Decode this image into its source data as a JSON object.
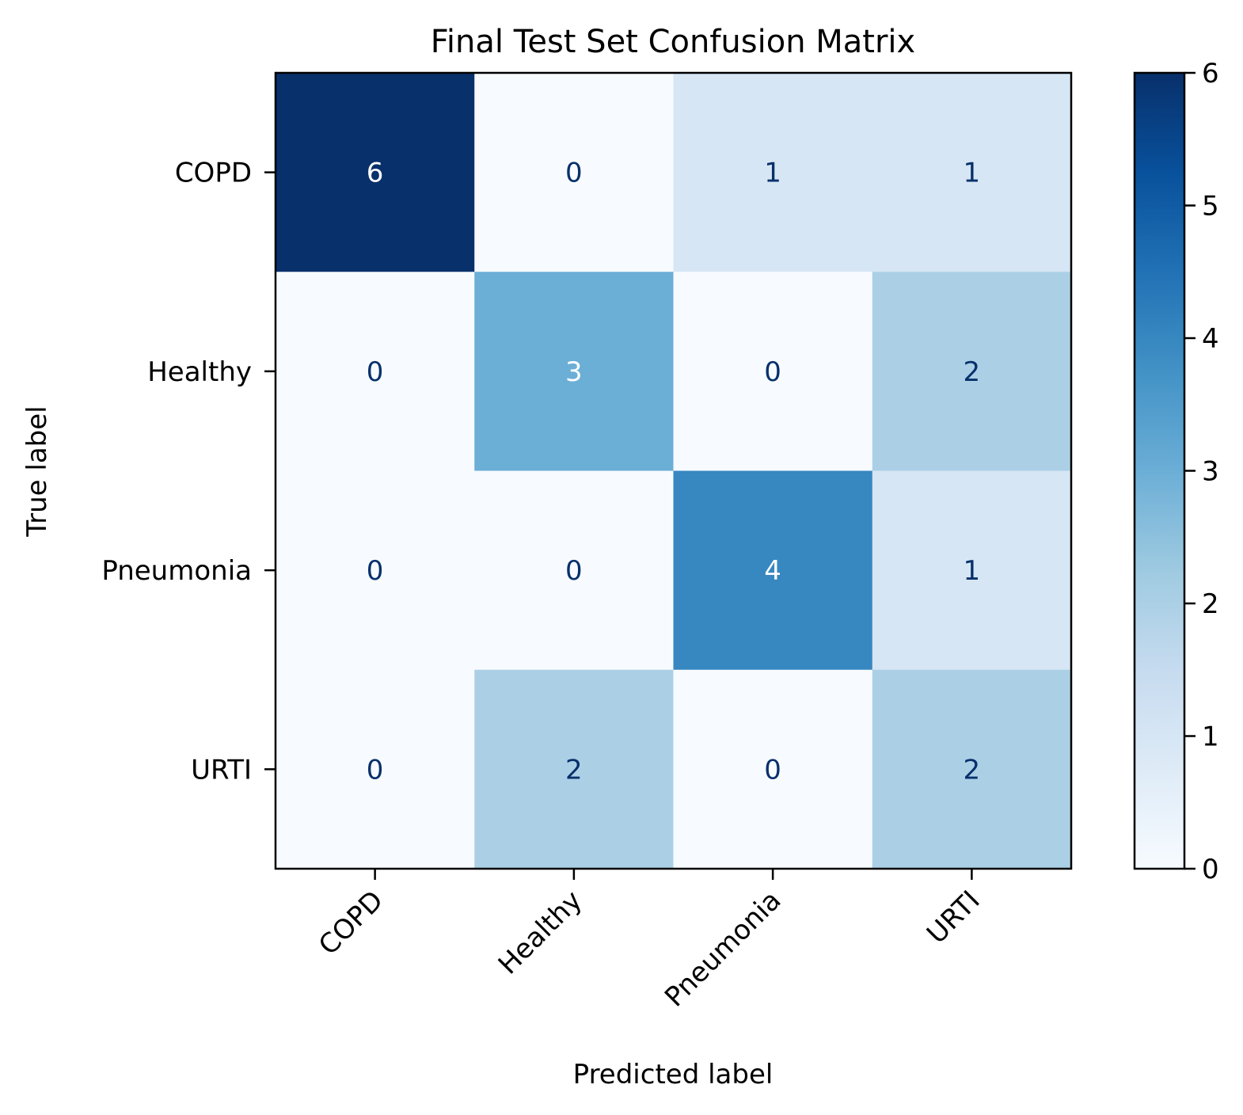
{
  "chart_data": {
    "type": "heatmap",
    "title": "Final Test Set Confusion Matrix",
    "xlabel": "Predicted label",
    "ylabel": "True label",
    "x_categories": [
      "COPD",
      "Healthy",
      "Pneumonia",
      "URTI"
    ],
    "y_categories": [
      "COPD",
      "Healthy",
      "Pneumonia",
      "URTI"
    ],
    "values": [
      [
        6,
        0,
        1,
        1
      ],
      [
        0,
        3,
        0,
        2
      ],
      [
        0,
        0,
        4,
        1
      ],
      [
        0,
        2,
        0,
        2
      ]
    ],
    "colormap": "Blues",
    "vmin": 0,
    "vmax": 6,
    "colorbar_ticks": [
      0,
      1,
      2,
      3,
      4,
      5,
      6
    ],
    "x_tick_rotation_deg": 45,
    "grid": false
  }
}
